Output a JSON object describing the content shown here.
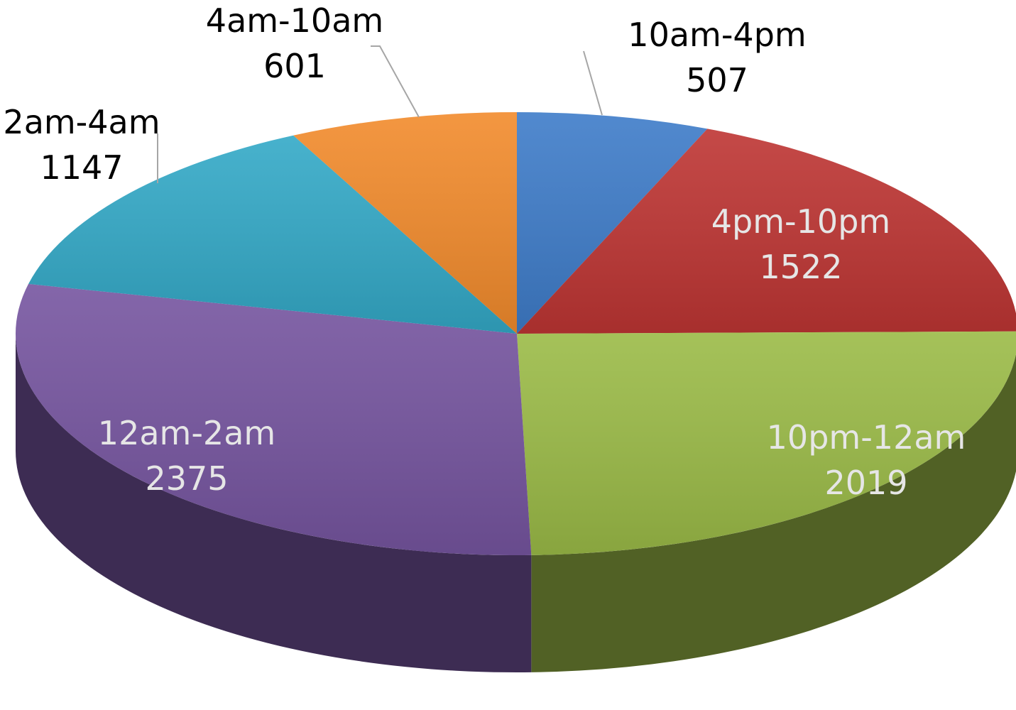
{
  "chart_data": {
    "type": "pie",
    "title": "",
    "slices": [
      {
        "label": "10am-4pm",
        "value": 507,
        "color": "#3e7cc9",
        "label_position": "outside"
      },
      {
        "label": "4pm-10pm",
        "value": 1522,
        "color": "#be3533",
        "label_position": "inside"
      },
      {
        "label": "10pm-12am",
        "value": 2019,
        "color": "#9bbb47",
        "label_position": "inside"
      },
      {
        "label": "12am-2am",
        "value": 2375,
        "color": "#7655a0",
        "label_position": "inside"
      },
      {
        "label": "2am-4am",
        "value": 1147,
        "color": "#33a9c7",
        "label_position": "outside"
      },
      {
        "label": "4am-10am",
        "value": 601,
        "color": "#f28b2c",
        "label_position": "outside"
      }
    ],
    "style": "3d-tilted",
    "legend": "none"
  }
}
